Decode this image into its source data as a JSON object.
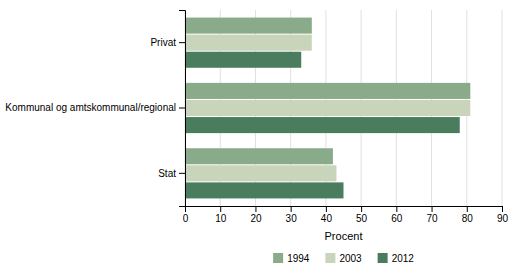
{
  "chart_data": {
    "type": "bar",
    "orientation": "horizontal",
    "categories": [
      "Stat",
      "Kommunal og amtskommunal/regional",
      "Privat"
    ],
    "series": [
      {
        "name": "1994",
        "color": "#8aab8a",
        "values": [
          42,
          81,
          36
        ]
      },
      {
        "name": "2003",
        "color": "#c8d5bb",
        "values": [
          43,
          81,
          36
        ]
      },
      {
        "name": "2012",
        "color": "#4a7c5e",
        "values": [
          45,
          78,
          33
        ]
      }
    ],
    "xlabel": "Procent",
    "xlim": [
      0,
      90
    ],
    "xticks": [
      0,
      10,
      20,
      30,
      40,
      50,
      60,
      70,
      80,
      90
    ],
    "grid": true,
    "legend": "bottom"
  }
}
